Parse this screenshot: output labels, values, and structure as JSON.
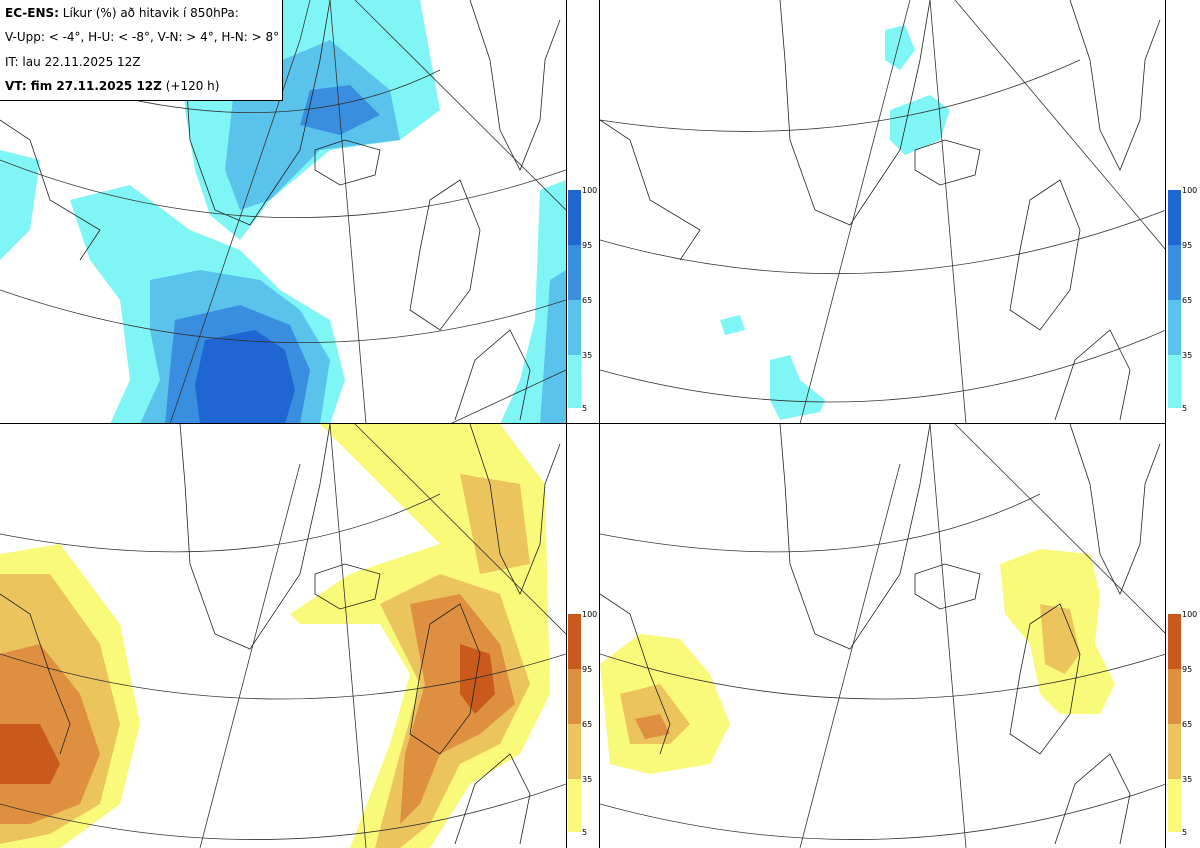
{
  "header": {
    "model": "EC-ENS:",
    "title": "Líkur (%) að hitavik í 850hPa:",
    "criteria": "V-Upp: < -4°, H-U: < -8°, V-N: > 4°, H-N: > 8°",
    "init_time": "IT: lau 22.11.2025 12Z",
    "valid_label": "VT: fim 27.11.2025 12Z",
    "lead": "(+120 h)"
  },
  "panels": [
    {
      "id": "top-left",
      "name": "V-Upp",
      "scheme": "cold"
    },
    {
      "id": "top-right",
      "name": "H-U",
      "scheme": "cold"
    },
    {
      "id": "bottom-left",
      "name": "V-N",
      "scheme": "warm"
    },
    {
      "id": "bottom-right",
      "name": "H-N",
      "scheme": "warm"
    }
  ],
  "colorbar": {
    "ticks": [
      "100",
      "95",
      "65",
      "35",
      "5"
    ],
    "cold_colors": [
      "#1f66d2",
      "#3a8ee0",
      "#59c3ec",
      "#80f5f5"
    ],
    "warm_colors": [
      "#c95a1c",
      "#de8f3f",
      "#ecc45e",
      "#fafa7a"
    ]
  },
  "colors": {
    "cold_5": "#80f5f5",
    "cold_35": "#59c3ec",
    "cold_65": "#3a8ee0",
    "cold_95": "#1f66d2",
    "warm_5": "#fafa7a",
    "warm_35": "#ecc45e",
    "warm_65": "#de8f3f",
    "warm_95": "#c95a1c"
  }
}
